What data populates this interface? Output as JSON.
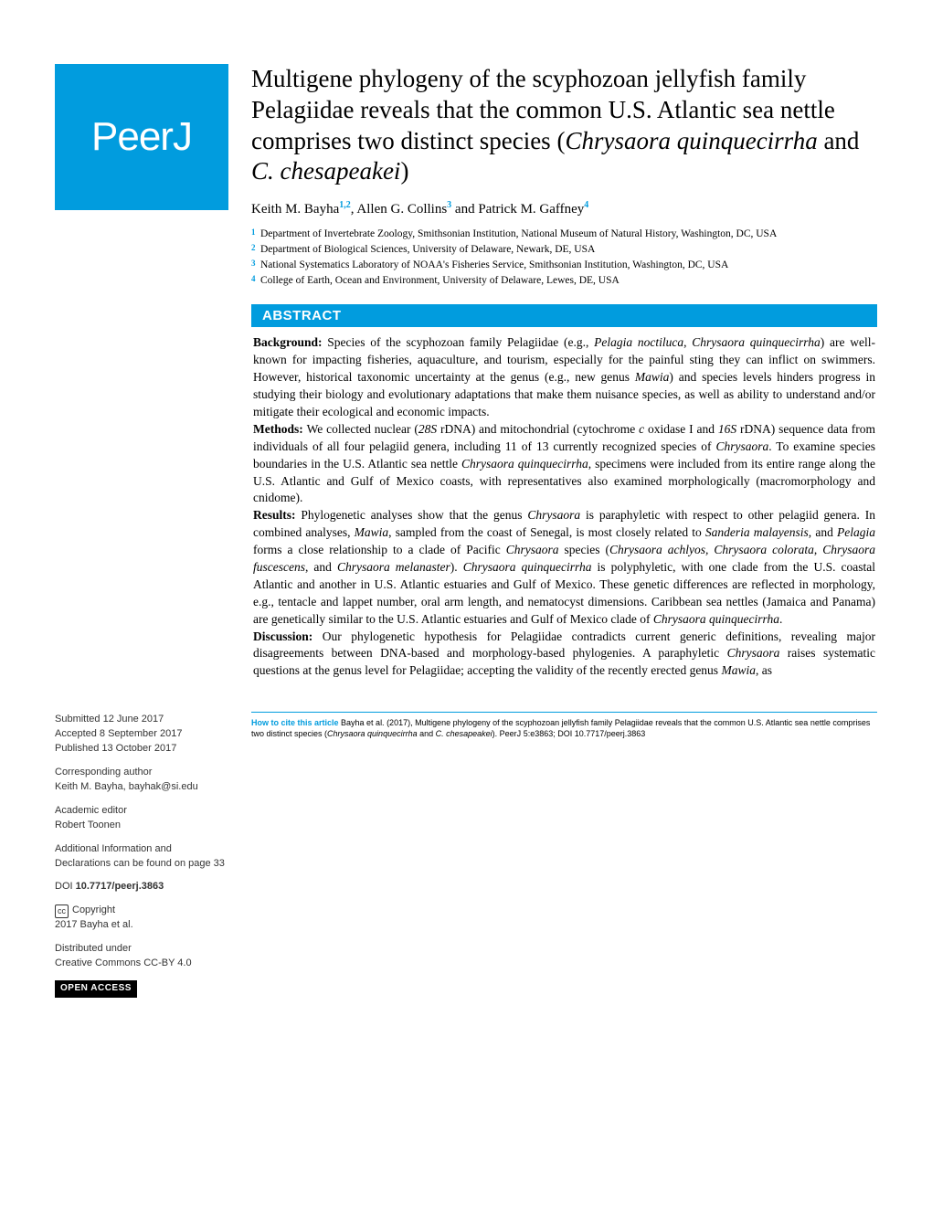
{
  "logo": "PeerJ",
  "title_part1": "Multigene phylogeny of the scyphozoan jellyfish family Pelagiidae reveals that the common U.S. Atlantic sea nettle comprises two distinct species (",
  "title_italic1": "Chrysaora quinquecirrha",
  "title_part2": " and ",
  "title_italic2": "C. chesapeakei",
  "title_part3": ")",
  "authors": {
    "a1": "Keith M. Bayha",
    "s1": "1,2",
    "a2": ", Allen G. Collins",
    "s2": "3",
    "a3": " and Patrick M. Gaffney",
    "s3": "4"
  },
  "affiliations": [
    {
      "n": "1",
      "text": "Department of Invertebrate Zoology, Smithsonian Institution, National Museum of Natural History, Washington, DC, USA"
    },
    {
      "n": "2",
      "text": "Department of Biological Sciences, University of Delaware, Newark, DE, USA"
    },
    {
      "n": "3",
      "text": "National Systematics Laboratory of NOAA's Fisheries Service, Smithsonian Institution, Washington, DC, USA"
    },
    {
      "n": "4",
      "text": "College of Earth, Ocean and Environment, University of Delaware, Lewes, DE, USA"
    }
  ],
  "abstract_label": "ABSTRACT",
  "abstract": {
    "bg_label": "Background: ",
    "bg_p1": "Species of the scyphozoan family Pelagiidae (e.g., ",
    "bg_i1": "Pelagia noctiluca",
    "bg_p2": ", ",
    "bg_i2": "Chrysaora quinquecirrha",
    "bg_p3": ") are well-known for impacting fisheries, aquaculture, and tourism, especially for the painful sting they can inflict on swimmers. However, historical taxonomic uncertainty at the genus (e.g., new genus ",
    "bg_i3": "Mawia",
    "bg_p4": ") and species levels hinders progress in studying their biology and evolutionary adaptations that make them nuisance species, as well as ability to understand and/or mitigate their ecological and economic impacts.",
    "me_label": "Methods: ",
    "me_p1": "We collected nuclear (",
    "me_i1": "28S",
    "me_p2": " rDNA) and mitochondrial (cytochrome ",
    "me_i2": "c",
    "me_p3": " oxidase I and ",
    "me_i3": "16S",
    "me_p4": " rDNA) sequence data from individuals of all four pelagiid genera, including 11 of 13 currently recognized species of ",
    "me_i4": "Chrysaora",
    "me_p5": ". To examine species boundaries in the U.S. Atlantic sea nettle ",
    "me_i5": "Chrysaora quinquecirrha",
    "me_p6": ", specimens were included from its entire range along the U.S. Atlantic and Gulf of Mexico coasts, with representatives also examined morphologically (macromorphology and cnidome).",
    "re_label": "Results: ",
    "re_p1": "Phylogenetic analyses show that the genus ",
    "re_i1": "Chrysaora",
    "re_p2": " is paraphyletic with respect to other pelagiid genera. In combined analyses, ",
    "re_i2": "Mawia",
    "re_p3": ", sampled from the coast of Senegal, is most closely related to ",
    "re_i3": "Sanderia malayensis",
    "re_p4": ", and ",
    "re_i4": "Pelagia",
    "re_p5": " forms a close relationship to a clade of Pacific ",
    "re_i5": "Chrysaora",
    "re_p6": " species (",
    "re_i6": "Chrysaora achlyos, Chrysaora colorata",
    "re_p7": ", ",
    "re_i7": "Chrysaora fuscescens",
    "re_p8": ", and ",
    "re_i8": "Chrysaora melanaster",
    "re_p9": "). ",
    "re_i9": "Chrysaora quinquecirrha",
    "re_p10": " is polyphyletic, with one clade from the U.S. coastal Atlantic and another in U.S. Atlantic estuaries and Gulf of Mexico. These genetic differences are reflected in morphology, e.g., tentacle and lappet number, oral arm length, and nematocyst dimensions. Caribbean sea nettles (Jamaica and Panama) are genetically similar to the U.S. Atlantic estuaries and Gulf of Mexico clade of ",
    "re_i10": "Chrysaora quinquecirrha",
    "re_p11": ".",
    "di_label": "Discussion: ",
    "di_p1": "Our phylogenetic hypothesis for Pelagiidae contradicts current generic definitions, revealing major disagreements between DNA-based and morphology-based phylogenies. A paraphyletic ",
    "di_i1": "Chrysaora",
    "di_p2": " raises systematic questions at the genus level for Pelagiidae; accepting the validity of the recently erected genus ",
    "di_i2": "Mawia",
    "di_p3": ", as"
  },
  "sidebar": {
    "submitted_label": "Submitted ",
    "submitted": "12 June 2017",
    "accepted_label": "Accepted ",
    "accepted": "8 September 2017",
    "published_label": "Published ",
    "published": "13 October 2017",
    "corr_label": "Corresponding author",
    "corr_value": "Keith M. Bayha, bayhak@si.edu",
    "editor_label": "Academic editor",
    "editor_value": "Robert Toonen",
    "addl_info": "Additional Information and Declarations can be found on page 33",
    "doi_label": "DOI ",
    "doi": "10.7717/peerj.3863",
    "copyright_label": "Copyright",
    "copyright_value": "2017 Bayha et al.",
    "dist_label": "Distributed under",
    "dist_value": "Creative Commons CC-BY 4.0",
    "open_access": "OPEN ACCESS"
  },
  "citation": {
    "label": "How to cite this article ",
    "p1": "Bayha et al. (2017), Multigene phylogeny of the scyphozoan jellyfish family Pelagiidae reveals that the common U.S. Atlantic sea nettle comprises two distinct species (",
    "i1": "Chrysaora quinquecirrha",
    "p2": " and ",
    "i2": "C. chesapeakei",
    "p3": "). ",
    "journal": "PeerJ ",
    "vol": "5:e3863; DOI 10.7717/peerj.3863"
  },
  "colors": {
    "brand": "#019cde",
    "text": "#000000",
    "bg": "#ffffff"
  }
}
